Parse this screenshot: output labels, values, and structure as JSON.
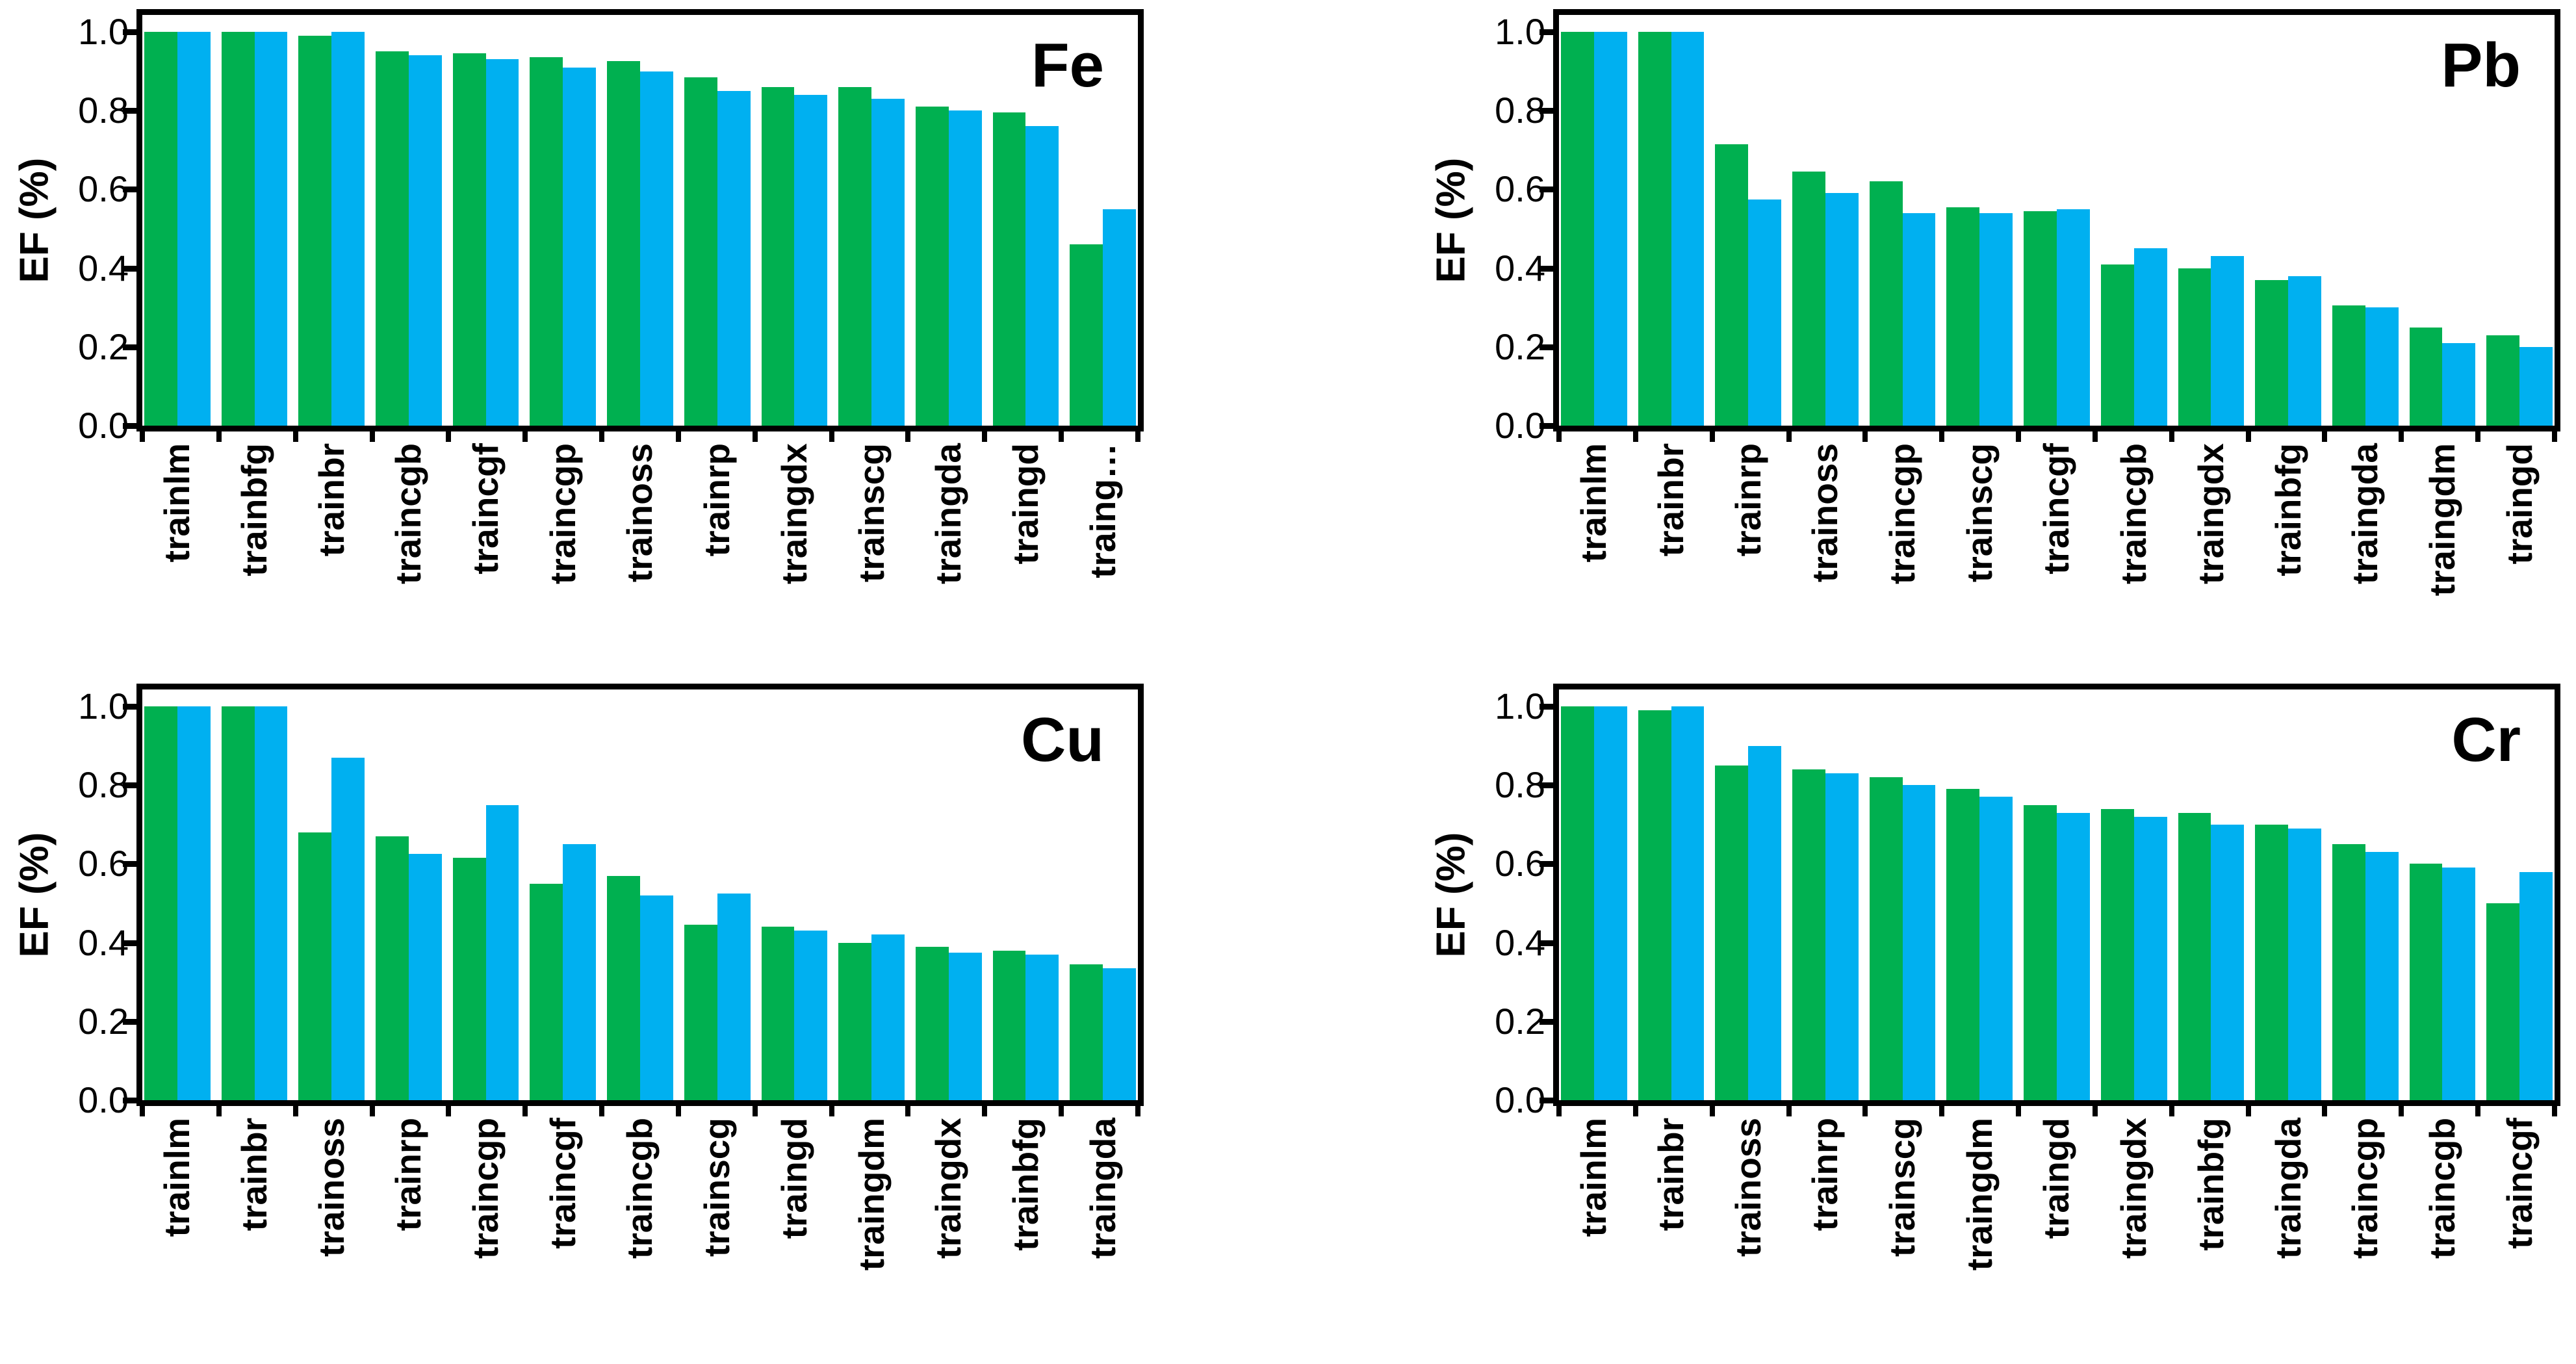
{
  "colors": {
    "green": "#00B050",
    "blue": "#00B0F0",
    "axis": "#000000",
    "background": "#ffffff"
  },
  "chart_data": [
    {
      "type": "bar",
      "title": "Fe",
      "ylabel": "EF (%)",
      "ylim": [
        0,
        1.0
      ],
      "y_ticks": [
        "1.0",
        "0.8",
        "0.6",
        "0.4",
        "0.2",
        "0.0"
      ],
      "grid": false,
      "legend": "none",
      "categories": [
        "trainlm",
        "trainbfg",
        "trainbr",
        "traincgb",
        "traincgf",
        "traincgp",
        "trainoss",
        "trainrp",
        "traingdx",
        "trainscg",
        "traingda",
        "traingd",
        "traing…"
      ],
      "series": [
        {
          "name": "green",
          "color": "#00B050",
          "values": [
            1.0,
            1.0,
            0.99,
            0.95,
            0.945,
            0.935,
            0.925,
            0.885,
            0.86,
            0.86,
            0.81,
            0.795,
            0.46
          ]
        },
        {
          "name": "blue",
          "color": "#00B0F0",
          "values": [
            1.0,
            1.0,
            1.0,
            0.94,
            0.93,
            0.91,
            0.9,
            0.85,
            0.84,
            0.83,
            0.8,
            0.76,
            0.55
          ]
        }
      ]
    },
    {
      "type": "bar",
      "title": "Pb",
      "ylabel": "EF (%)",
      "ylim": [
        0,
        1.0
      ],
      "y_ticks": [
        "1.0",
        "0.8",
        "0.6",
        "0.4",
        "0.2",
        "0.0"
      ],
      "grid": false,
      "legend": "none",
      "categories": [
        "trainlm",
        "trainbr",
        "trainrp",
        "trainoss",
        "traincgp",
        "trainscg",
        "traincgf",
        "traincgb",
        "traingdx",
        "trainbfg",
        "traingda",
        "traingdm",
        "traingd"
      ],
      "series": [
        {
          "name": "green",
          "color": "#00B050",
          "values": [
            1.0,
            1.0,
            0.715,
            0.645,
            0.62,
            0.555,
            0.545,
            0.41,
            0.4,
            0.37,
            0.305,
            0.25,
            0.23
          ]
        },
        {
          "name": "blue",
          "color": "#00B0F0",
          "values": [
            1.0,
            1.0,
            0.575,
            0.59,
            0.54,
            0.54,
            0.55,
            0.45,
            0.43,
            0.38,
            0.3,
            0.21,
            0.2
          ]
        }
      ]
    },
    {
      "type": "bar",
      "title": "Cu",
      "ylabel": "EF (%)",
      "ylim": [
        0,
        1.0
      ],
      "y_ticks": [
        "1.0",
        "0.8",
        "0.6",
        "0.4",
        "0.2",
        "0.0"
      ],
      "grid": false,
      "legend": "none",
      "categories": [
        "trainlm",
        "trainbr",
        "trainoss",
        "trainrp",
        "traincgp",
        "traincgf",
        "traincgb",
        "trainscg",
        "traingd",
        "traingdm",
        "traingdx",
        "trainbfg",
        "traingda"
      ],
      "series": [
        {
          "name": "green",
          "color": "#00B050",
          "values": [
            1.0,
            1.0,
            0.68,
            0.67,
            0.615,
            0.55,
            0.57,
            0.445,
            0.44,
            0.4,
            0.39,
            0.38,
            0.345
          ]
        },
        {
          "name": "blue",
          "color": "#00B0F0",
          "values": [
            1.0,
            1.0,
            0.87,
            0.625,
            0.75,
            0.65,
            0.52,
            0.525,
            0.43,
            0.42,
            0.375,
            0.37,
            0.335
          ]
        }
      ]
    },
    {
      "type": "bar",
      "title": "Cr",
      "ylabel": "EF (%)",
      "ylim": [
        0,
        1.0
      ],
      "y_ticks": [
        "1.0",
        "0.8",
        "0.6",
        "0.4",
        "0.2",
        "0.0"
      ],
      "grid": false,
      "legend": "none",
      "categories": [
        "trainlm",
        "trainbr",
        "trainoss",
        "trainrp",
        "trainscg",
        "traingdm",
        "traingd",
        "traingdx",
        "trainbfg",
        "traingda",
        "traincgp",
        "traincgb",
        "traincgf"
      ],
      "series": [
        {
          "name": "green",
          "color": "#00B050",
          "values": [
            1.0,
            0.99,
            0.85,
            0.84,
            0.82,
            0.79,
            0.75,
            0.74,
            0.73,
            0.7,
            0.65,
            0.6,
            0.5
          ]
        },
        {
          "name": "blue",
          "color": "#00B0F0",
          "values": [
            1.0,
            1.0,
            0.9,
            0.83,
            0.8,
            0.77,
            0.73,
            0.72,
            0.7,
            0.69,
            0.63,
            0.59,
            0.58
          ]
        }
      ]
    }
  ]
}
